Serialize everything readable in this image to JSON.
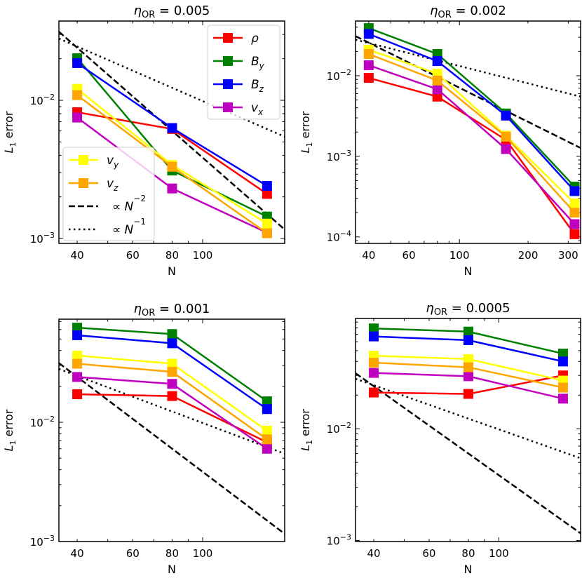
{
  "chart_data": [
    {
      "type": "line",
      "title": "η_OR = 0.005",
      "title_symbol": "η",
      "title_subscript": "OR",
      "title_value": "= 0.005",
      "xlabel": "N",
      "ylabel": "L1 error",
      "xscale": "log",
      "yscale": "log",
      "xlim": [
        35,
        182
      ],
      "ylim": [
        0.00092,
        0.0375
      ],
      "xticks": [
        40,
        60,
        80,
        100
      ],
      "xtick_labels": [
        "40",
        "60",
        "80",
        "100"
      ],
      "yticks": [
        0.001,
        0.01
      ],
      "ytick_labels": [
        "10^-3",
        "10^-2"
      ],
      "x": [
        40,
        80,
        160
      ],
      "series": [
        {
          "name": "ρ",
          "color": "#ff0000",
          "values": [
            0.0082,
            0.0062,
            0.0021
          ]
        },
        {
          "name": "B_y",
          "color": "#008000",
          "values": [
            0.0202,
            0.0031,
            0.00144
          ]
        },
        {
          "name": "B_z",
          "color": "#0000ff",
          "values": [
            0.0186,
            0.0063,
            0.0024
          ]
        },
        {
          "name": "v_x",
          "color": "#bf00bf",
          "values": [
            0.0075,
            0.0023,
            0.0011
          ]
        },
        {
          "name": "v_y",
          "color": "#ffff00",
          "values": [
            0.0121,
            0.0034,
            0.00128
          ]
        },
        {
          "name": "v_z",
          "color": "#ffa500",
          "values": [
            0.0109,
            0.0033,
            0.00109
          ]
        }
      ],
      "reference_lines": [
        {
          "name": "∝ N^-2",
          "style": "dashed",
          "points": [
            [
              35,
              0.0314
            ],
            [
              182,
              0.00116
            ]
          ]
        },
        {
          "name": "∝ N^-1",
          "style": "dotted",
          "points": [
            [
              35,
              0.028
            ],
            [
              182,
              0.00545
            ]
          ]
        }
      ],
      "legends": [
        {
          "placement": "upper-right",
          "entries": [
            "ρ",
            "B_y",
            "B_z",
            "v_x"
          ]
        },
        {
          "placement": "lower-left",
          "entries": [
            "v_y",
            "v_z",
            "∝ N^-2",
            "∝ N^-1"
          ]
        }
      ]
    },
    {
      "type": "line",
      "title": "η_OR = 0.002",
      "title_symbol": "η",
      "title_subscript": "OR",
      "title_value": "= 0.002",
      "xlabel": "N",
      "ylabel": "L1 error",
      "xscale": "log",
      "yscale": "log",
      "xlim": [
        35,
        340
      ],
      "ylim": [
        8.3e-05,
        0.0477
      ],
      "xticks": [
        40,
        60,
        100,
        200,
        300
      ],
      "xtick_labels": [
        "40",
        "60",
        "100",
        "200",
        "300"
      ],
      "yticks": [
        0.0001,
        0.001,
        0.01
      ],
      "ytick_labels": [
        "10^-4",
        "10^-3",
        "10^-2"
      ],
      "x": [
        40,
        80,
        160,
        320
      ],
      "series": [
        {
          "name": "ρ",
          "color": "#ff0000",
          "values": [
            0.0094,
            0.0055,
            0.0016,
            0.000108
          ]
        },
        {
          "name": "B_y",
          "color": "#008000",
          "values": [
            0.039,
            0.0186,
            0.0034,
            0.00042
          ]
        },
        {
          "name": "B_z",
          "color": "#0000ff",
          "values": [
            0.033,
            0.0152,
            0.0032,
            0.00037
          ]
        },
        {
          "name": "v_x",
          "color": "#bf00bf",
          "values": [
            0.0135,
            0.0068,
            0.00123,
            0.000144
          ]
        },
        {
          "name": "v_y",
          "color": "#ffff00",
          "values": [
            0.021,
            0.0106,
            0.0018,
            0.00026
          ]
        },
        {
          "name": "v_z",
          "color": "#ffa500",
          "values": [
            0.0186,
            0.0087,
            0.00175,
            0.0002
          ]
        }
      ],
      "reference_lines": [
        {
          "name": "∝ N^-2",
          "style": "dashed",
          "points": [
            [
              35,
              0.031
            ],
            [
              340,
              0.00127
            ]
          ]
        },
        {
          "name": "∝ N^-1",
          "style": "dotted",
          "points": [
            [
              35,
              0.028
            ],
            [
              340,
              0.0055
            ]
          ]
        }
      ],
      "legends": []
    },
    {
      "type": "line",
      "title": "η_OR = 0.001",
      "title_symbol": "η",
      "title_subscript": "OR",
      "title_value": "= 0.001",
      "xlabel": "N",
      "ylabel": "L1 error",
      "xscale": "log",
      "yscale": "log",
      "xlim": [
        35,
        182
      ],
      "ylim": [
        0.001,
        0.0733
      ],
      "xticks": [
        40,
        60,
        80,
        100
      ],
      "xtick_labels": [
        "40",
        "60",
        "80",
        "100"
      ],
      "yticks": [
        0.001,
        0.01
      ],
      "ytick_labels": [
        "10^-3",
        "10^-2"
      ],
      "x": [
        40,
        80,
        160
      ],
      "series": [
        {
          "name": "ρ",
          "color": "#ff0000",
          "values": [
            0.0172,
            0.0166,
            0.0068
          ]
        },
        {
          "name": "B_y",
          "color": "#008000",
          "values": [
            0.0622,
            0.055,
            0.015
          ]
        },
        {
          "name": "B_z",
          "color": "#0000ff",
          "values": [
            0.0537,
            0.046,
            0.0129
          ]
        },
        {
          "name": "v_x",
          "color": "#bf00bf",
          "values": [
            0.024,
            0.021,
            0.006
          ]
        },
        {
          "name": "v_y",
          "color": "#ffff00",
          "values": [
            0.0363,
            0.031,
            0.0085
          ]
        },
        {
          "name": "v_z",
          "color": "#ffa500",
          "values": [
            0.031,
            0.0265,
            0.0072
          ]
        }
      ],
      "reference_lines": [
        {
          "name": "∝ N^-2",
          "style": "dashed",
          "points": [
            [
              35,
              0.0314
            ],
            [
              182,
              0.00116
            ]
          ]
        },
        {
          "name": "∝ N^-1",
          "style": "dotted",
          "points": [
            [
              35,
              0.028
            ],
            [
              182,
              0.00545
            ]
          ]
        }
      ],
      "legends": []
    },
    {
      "type": "line",
      "title": "η_OR = 0.0005",
      "title_symbol": "η",
      "title_subscript": "OR",
      "title_value": "= 0.0005",
      "xlabel": "N",
      "ylabel": "L1 error",
      "xscale": "log",
      "yscale": "log",
      "xlim": [
        35,
        182
      ],
      "ylim": [
        0.00098,
        0.097
      ],
      "xticks": [
        40,
        60,
        80,
        100
      ],
      "xtick_labels": [
        "40",
        "60",
        "80",
        "100"
      ],
      "yticks": [
        0.001,
        0.01
      ],
      "ytick_labels": [
        "10^-3",
        "10^-2"
      ],
      "x": [
        40,
        80,
        160
      ],
      "series": [
        {
          "name": "ρ",
          "color": "#ff0000",
          "values": [
            0.0211,
            0.0205,
            0.03
          ]
        },
        {
          "name": "B_y",
          "color": "#008000",
          "values": [
            0.079,
            0.074,
            0.047
          ]
        },
        {
          "name": "B_z",
          "color": "#0000ff",
          "values": [
            0.067,
            0.062,
            0.04
          ]
        },
        {
          "name": "v_x",
          "color": "#bf00bf",
          "values": [
            0.0316,
            0.0295,
            0.0186
          ]
        },
        {
          "name": "v_y",
          "color": "#ffff00",
          "values": [
            0.045,
            0.042,
            0.027
          ]
        },
        {
          "name": "v_z",
          "color": "#ffa500",
          "values": [
            0.039,
            0.0355,
            0.0234
          ]
        }
      ],
      "reference_lines": [
        {
          "name": "∝ N^-2",
          "style": "dashed",
          "points": [
            [
              35,
              0.0314
            ],
            [
              182,
              0.00116
            ]
          ]
        },
        {
          "name": "∝ N^-1",
          "style": "dotted",
          "points": [
            [
              35,
              0.028
            ],
            [
              182,
              0.00545
            ]
          ]
        }
      ],
      "legends": []
    }
  ]
}
